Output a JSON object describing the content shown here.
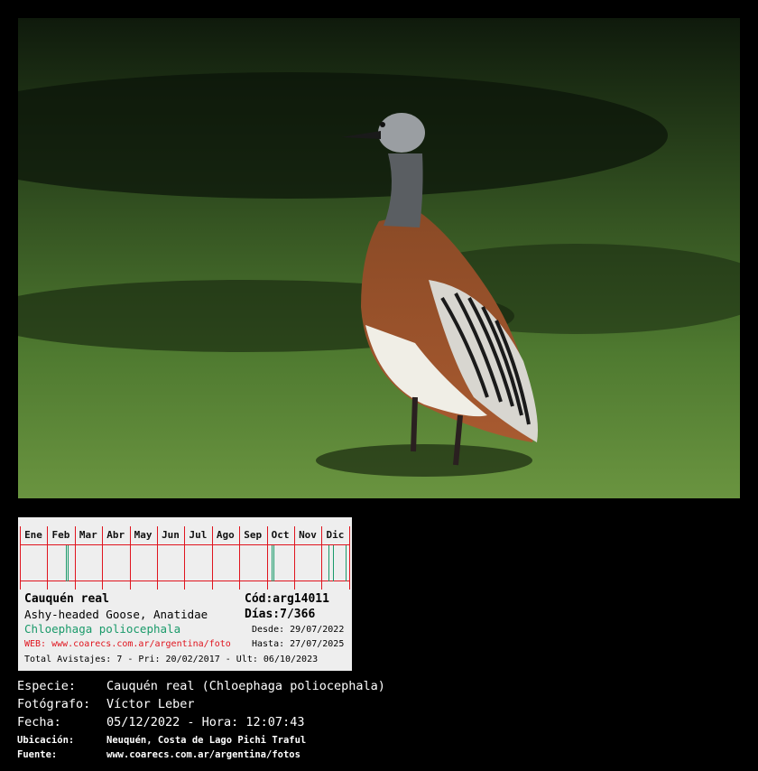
{
  "card": {
    "months": [
      "Ene",
      "Feb",
      "Mar",
      "Abr",
      "May",
      "Jun",
      "Jul",
      "Ago",
      "Sep",
      "Oct",
      "Nov",
      "Dic"
    ],
    "sightings_days": [
      51,
      53,
      280,
      282,
      343,
      348,
      362
    ],
    "common_name": "Cauquén real",
    "code": "Cód:arg14011",
    "english_family": "Ashy-headed Goose, Anatidae",
    "days": "Días:7/366",
    "scientific": "Chloephaga poliocephala",
    "desde": "Desde: 29/07/2022",
    "web": "WEB: www.coarecs.com.ar/argentina/foto",
    "hasta": "Hasta: 27/07/2025",
    "total": "Total Avistajes: 7 - Pri: 20/02/2017 - Ult: 06/10/2023",
    "colors": {
      "grid": "#e0141e",
      "tick": "#1a9a6a",
      "scientific": "#1a9a6a",
      "web": "#e0141e"
    }
  },
  "info": {
    "especie_label": "Especie:",
    "especie": "Cauquén real (Chloephaga poliocephala)",
    "fotografo_label": "Fotógrafo:",
    "fotografo": "Víctor Leber",
    "fecha_label": "Fecha:",
    "fecha": "05/12/2022 - Hora: 12:07:43",
    "ubicacion_label": "Ubicación:",
    "ubicacion": "Neuquén, Costa de Lago Pichi Traful",
    "fuente_label": "Fuente:",
    "fuente": "www.coarecs.com.ar/argentina/fotos"
  }
}
